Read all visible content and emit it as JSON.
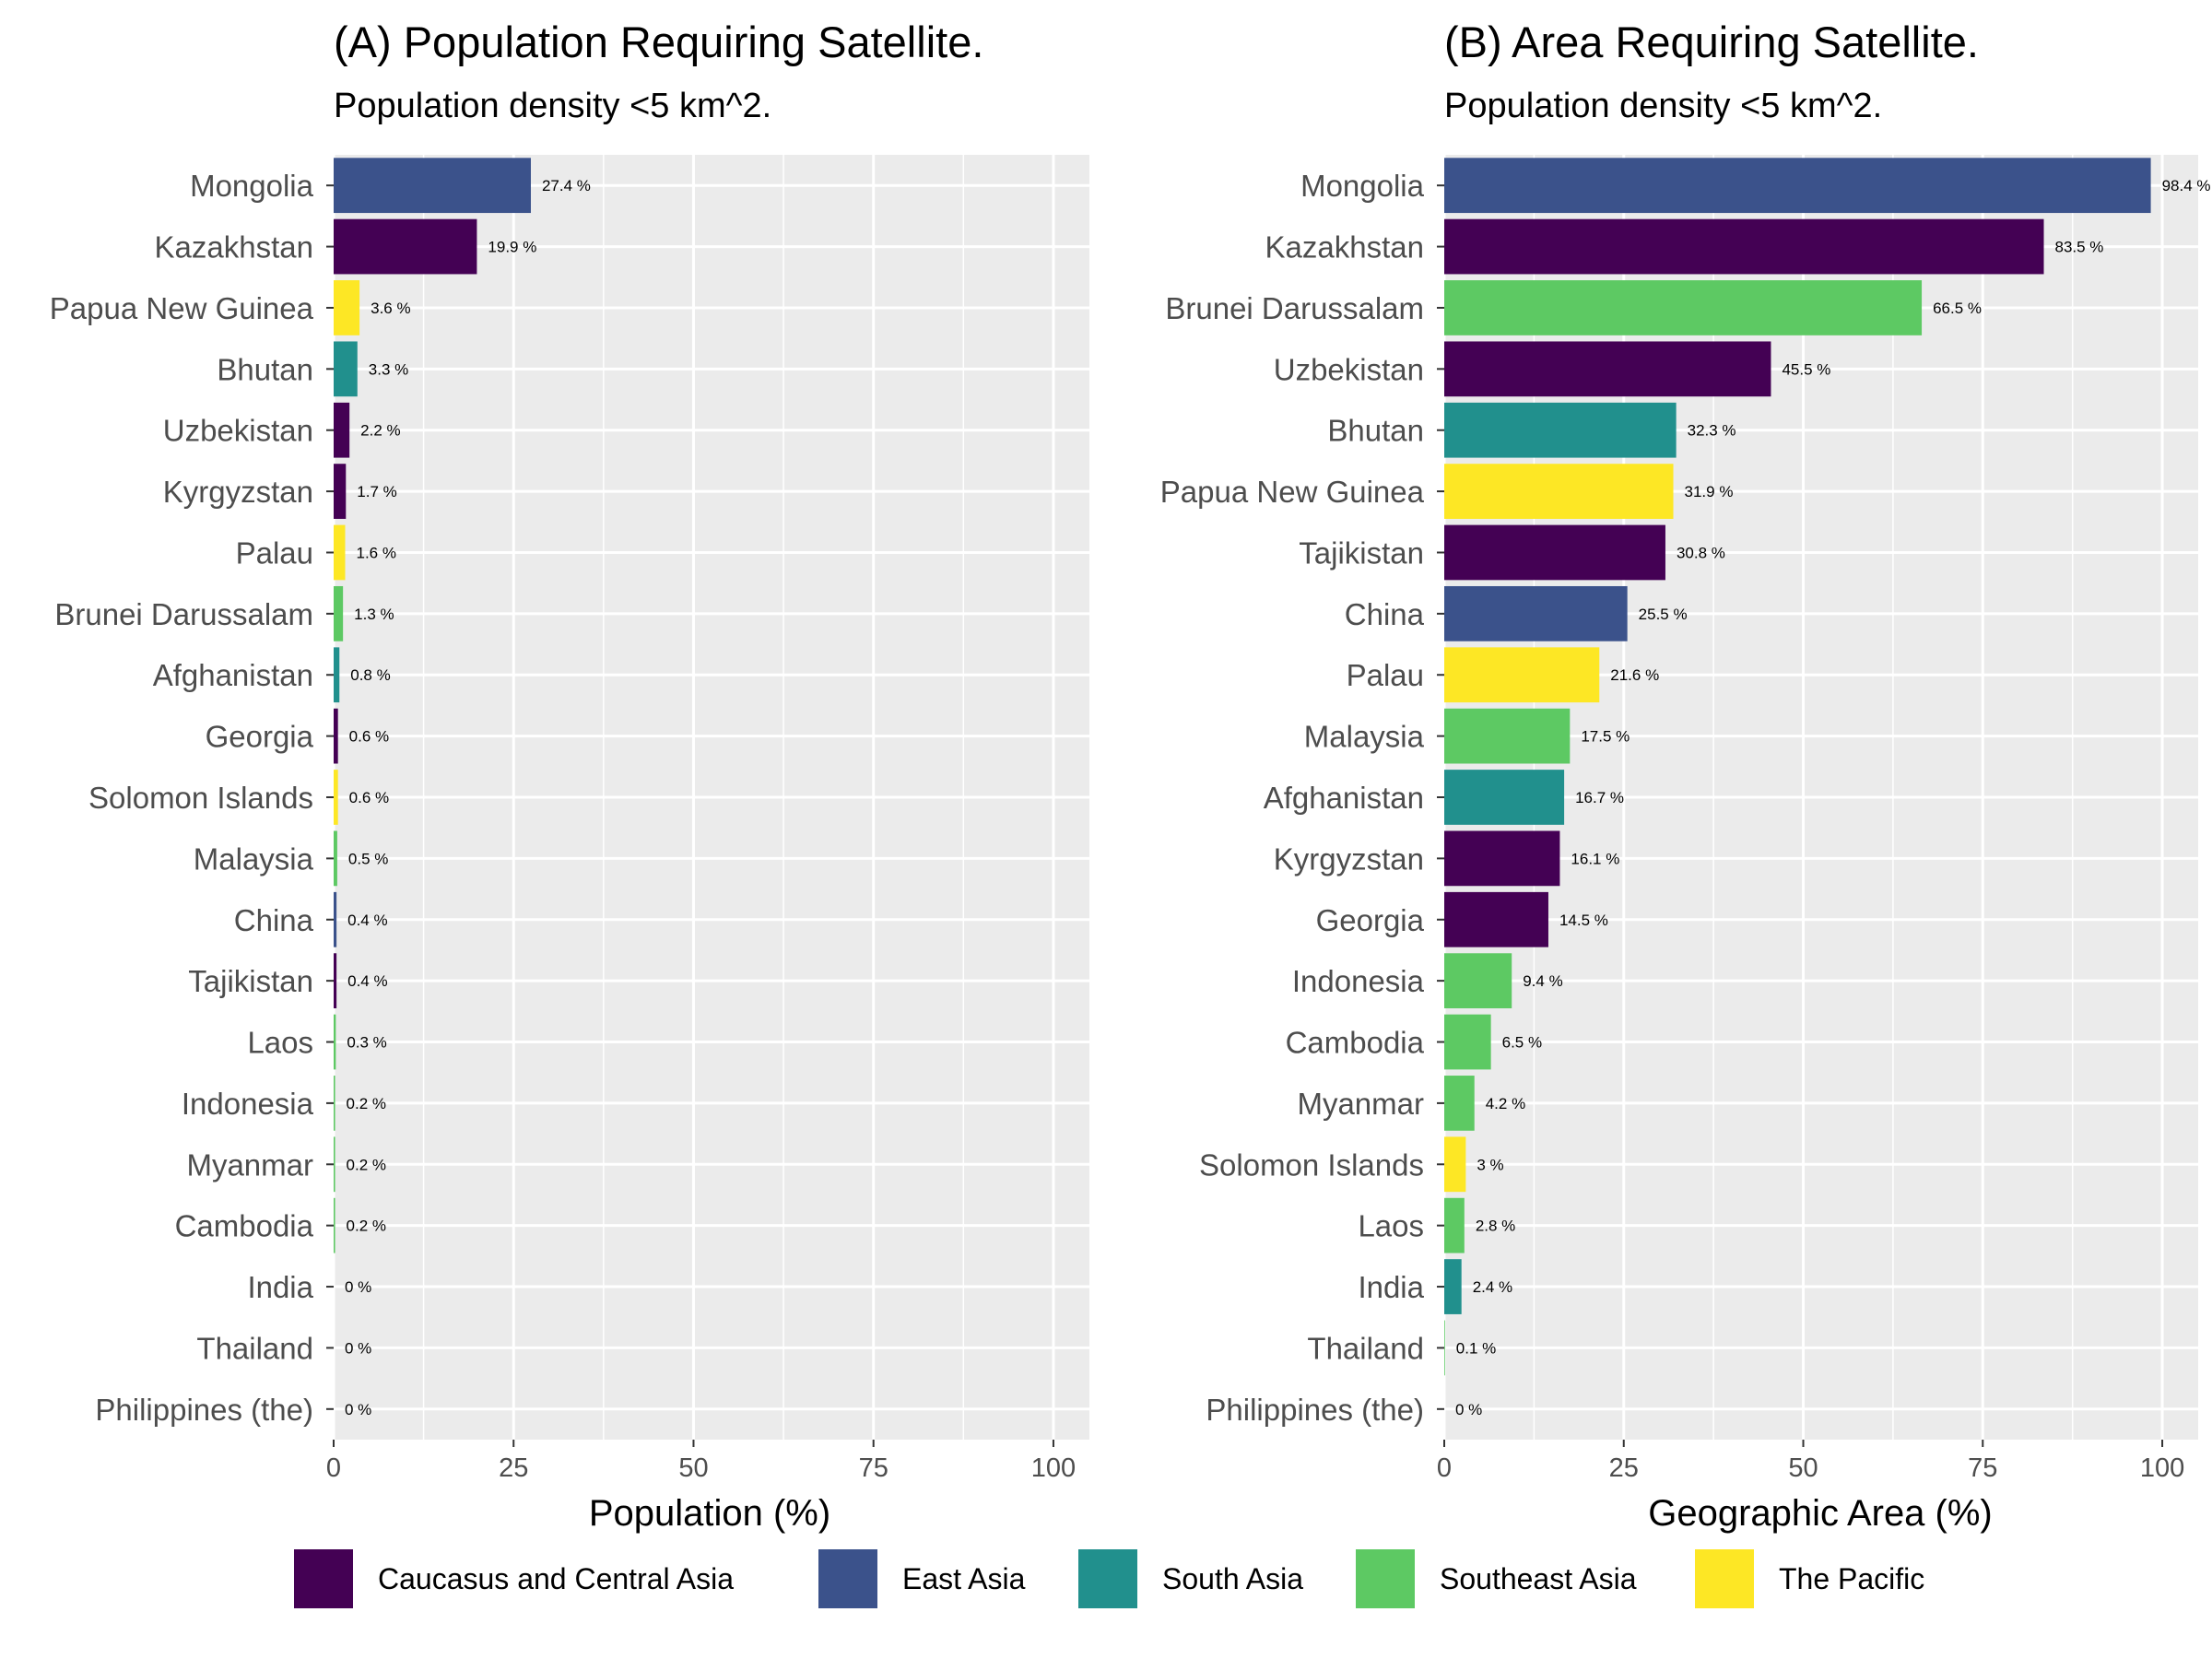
{
  "colors": {
    "Caucasus and Central Asia": "#440154",
    "East Asia": "#3b528b",
    "South Asia": "#21908d",
    "Southeast Asia": "#5dc963",
    "The Pacific": "#fde725"
  },
  "legend": {
    "position": "bottom",
    "items": [
      "Caucasus and Central Asia",
      "East Asia",
      "South Asia",
      "Southeast Asia",
      "The Pacific"
    ]
  },
  "chart_data": [
    {
      "type": "bar",
      "orientation": "horizontal",
      "title": "(A) Population Requiring Satellite.",
      "subtitle": "Population density <5 km^2.",
      "xlabel": "Population (%)",
      "ylabel": "",
      "xlim": [
        0,
        105
      ],
      "xticks": [
        0,
        25,
        50,
        75,
        100
      ],
      "grid": true,
      "categories": [
        "Mongolia",
        "Kazakhstan",
        "Papua New Guinea",
        "Bhutan",
        "Uzbekistan",
        "Kyrgyzstan",
        "Palau",
        "Brunei Darussalam",
        "Afghanistan",
        "Georgia",
        "Solomon Islands",
        "Malaysia",
        "China",
        "Tajikistan",
        "Laos",
        "Indonesia",
        "Myanmar",
        "Cambodia",
        "India",
        "Thailand",
        "Philippines (the)"
      ],
      "values": [
        27.4,
        19.9,
        3.6,
        3.3,
        2.2,
        1.7,
        1.6,
        1.3,
        0.8,
        0.6,
        0.6,
        0.5,
        0.4,
        0.4,
        0.3,
        0.2,
        0.2,
        0.2,
        0,
        0,
        0
      ],
      "labels": [
        "27.4 %",
        "19.9 %",
        "3.6 %",
        "3.3 %",
        "2.2 %",
        "1.7 %",
        "1.6 %",
        "1.3 %",
        "0.8 %",
        "0.6 %",
        "0.6 %",
        "0.5 %",
        "0.4 %",
        "0.4 %",
        "0.3 %",
        "0.2 %",
        "0.2 %",
        "0.2 %",
        "0 %",
        "0 %",
        "0 %"
      ],
      "regions": [
        "East Asia",
        "Caucasus and Central Asia",
        "The Pacific",
        "South Asia",
        "Caucasus and Central Asia",
        "Caucasus and Central Asia",
        "The Pacific",
        "Southeast Asia",
        "South Asia",
        "Caucasus and Central Asia",
        "The Pacific",
        "Southeast Asia",
        "East Asia",
        "Caucasus and Central Asia",
        "Southeast Asia",
        "Southeast Asia",
        "Southeast Asia",
        "Southeast Asia",
        "South Asia",
        "Southeast Asia",
        "Southeast Asia"
      ]
    },
    {
      "type": "bar",
      "orientation": "horizontal",
      "title": "(B) Area Requiring Satellite.",
      "subtitle": "Population density <5 km^2.",
      "xlabel": "Geographic Area (%)",
      "ylabel": "",
      "xlim": [
        0,
        105
      ],
      "xticks": [
        0,
        25,
        50,
        75,
        100
      ],
      "grid": true,
      "categories": [
        "Mongolia",
        "Kazakhstan",
        "Brunei Darussalam",
        "Uzbekistan",
        "Bhutan",
        "Papua New Guinea",
        "Tajikistan",
        "China",
        "Palau",
        "Malaysia",
        "Afghanistan",
        "Kyrgyzstan",
        "Georgia",
        "Indonesia",
        "Cambodia",
        "Myanmar",
        "Solomon Islands",
        "Laos",
        "India",
        "Thailand",
        "Philippines (the)"
      ],
      "values": [
        98.4,
        83.5,
        66.5,
        45.5,
        32.3,
        31.9,
        30.8,
        25.5,
        21.6,
        17.5,
        16.7,
        16.1,
        14.5,
        9.4,
        6.5,
        4.2,
        3,
        2.8,
        2.4,
        0.1,
        0
      ],
      "labels": [
        "98.4 %",
        "83.5 %",
        "66.5 %",
        "45.5 %",
        "32.3 %",
        "31.9 %",
        "30.8 %",
        "25.5 %",
        "21.6 %",
        "17.5 %",
        "16.7 %",
        "16.1 %",
        "14.5 %",
        "9.4 %",
        "6.5 %",
        "4.2 %",
        "3 %",
        "2.8 %",
        "2.4 %",
        "0.1 %",
        "0 %"
      ],
      "regions": [
        "East Asia",
        "Caucasus and Central Asia",
        "Southeast Asia",
        "Caucasus and Central Asia",
        "South Asia",
        "The Pacific",
        "Caucasus and Central Asia",
        "East Asia",
        "The Pacific",
        "Southeast Asia",
        "South Asia",
        "Caucasus and Central Asia",
        "Caucasus and Central Asia",
        "Southeast Asia",
        "Southeast Asia",
        "Southeast Asia",
        "The Pacific",
        "Southeast Asia",
        "South Asia",
        "Southeast Asia",
        "Southeast Asia"
      ]
    }
  ]
}
